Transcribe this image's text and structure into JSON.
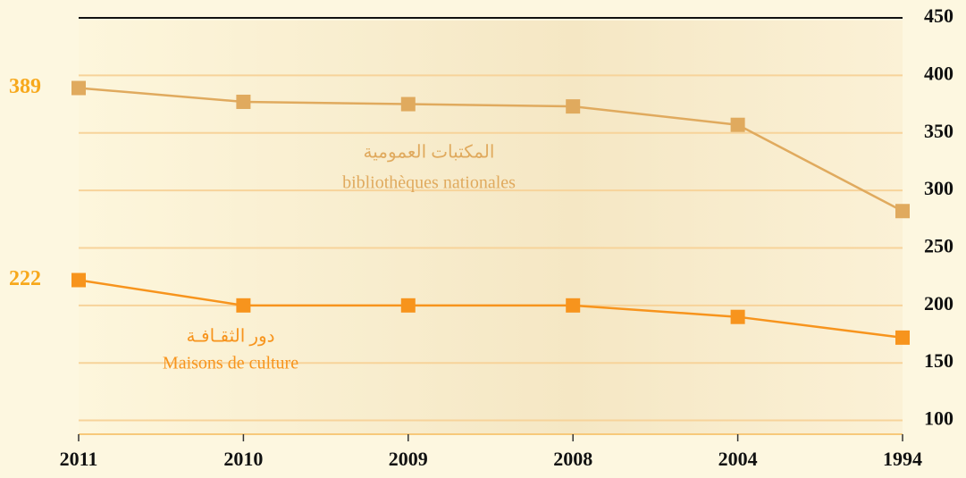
{
  "chart_data": {
    "type": "line",
    "categories": [
      "2011",
      "2010",
      "2009",
      "2008",
      "2004",
      "1994"
    ],
    "series": [
      {
        "name": "bibliothèques nationales",
        "name_ar": "المكتبات العمومية",
        "color": "#e0aa5e",
        "values": [
          389,
          377,
          375,
          373,
          357,
          282
        ]
      },
      {
        "name": "Maisons de culture",
        "name_ar": "دور الثقـافـة",
        "color": "#f7941d",
        "values": [
          222,
          200,
          200,
          200,
          190,
          172
        ]
      }
    ],
    "ylim": [
      88,
      450
    ],
    "yticks": [
      100,
      150,
      200,
      250,
      300,
      350,
      400,
      450
    ],
    "grid": true
  }
}
